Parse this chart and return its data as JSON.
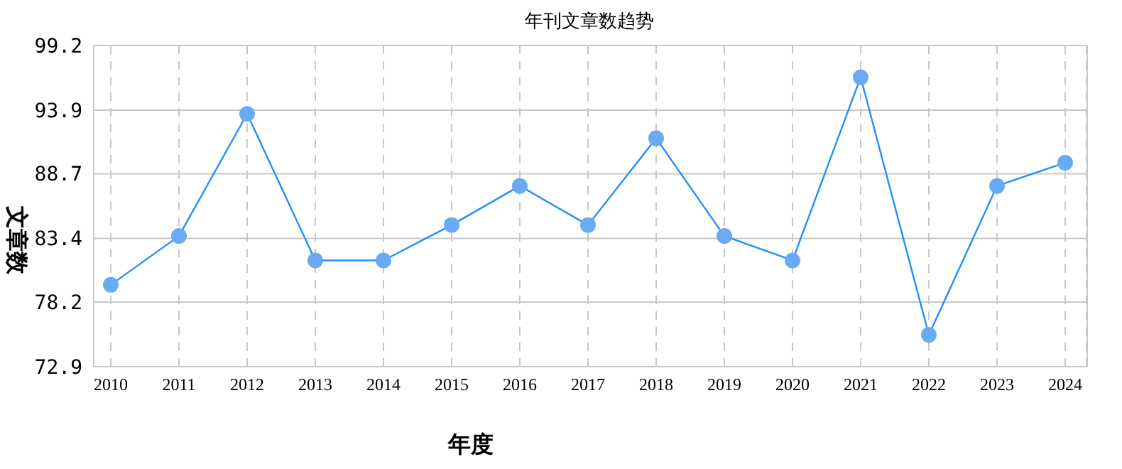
{
  "chart_data": {
    "type": "line",
    "title": "年刊文章数趋势",
    "xlabel": "年度",
    "ylabel": "文章数",
    "categories": [
      "2010",
      "2011",
      "2012",
      "2013",
      "2014",
      "2015",
      "2016",
      "2017",
      "2018",
      "2019",
      "2020",
      "2021",
      "2022",
      "2023",
      "2024"
    ],
    "series": [
      {
        "color": "#1e90ff",
        "values": [
          79.6,
          83.6,
          93.6,
          81.6,
          81.6,
          84.5,
          87.7,
          84.5,
          91.6,
          83.6,
          81.6,
          96.6,
          75.5,
          87.7,
          89.6
        ]
      }
    ],
    "ylim": [
      72.9,
      99.2
    ],
    "yticks": [
      72.9,
      78.2,
      83.4,
      88.7,
      93.9,
      99.2
    ],
    "grid": true,
    "marker": "circle",
    "line_style": "solid",
    "legend": false
  }
}
